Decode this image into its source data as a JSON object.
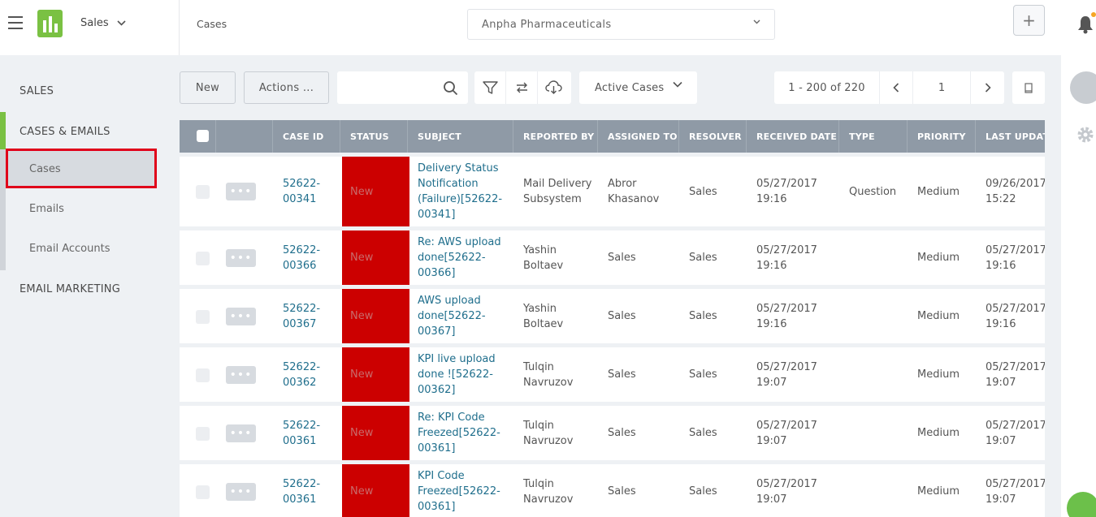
{
  "header": {
    "app_name": "Sales",
    "breadcrumb": "Cases",
    "org_selected": "Anpha Pharmaceuticals",
    "add_label": "+"
  },
  "sidebar": {
    "sections": [
      {
        "label": "SALES"
      },
      {
        "label": "CASES & EMAILS",
        "items": [
          {
            "label": "Cases"
          },
          {
            "label": "Emails"
          },
          {
            "label": "Email Accounts"
          }
        ]
      },
      {
        "label": "EMAIL MARKETING"
      }
    ]
  },
  "toolbar": {
    "new_label": "New",
    "actions_label": "Actions ...",
    "search_placeholder": "",
    "view_selected": "Active Cases",
    "page_range": "1 - 200 of 220",
    "page_number": "1"
  },
  "grid": {
    "columns": [
      "CASE ID",
      "STATUS",
      "SUBJECT",
      "REPORTED BY",
      "ASSIGNED TO",
      "RESOLVER",
      "RECEIVED DATE",
      "TYPE",
      "PRIORITY",
      "LAST UPDATE"
    ],
    "rows": [
      {
        "case_id": [
          "52622-",
          "00341"
        ],
        "status": "New",
        "subject": [
          "Delivery Status",
          "Notification",
          "(Failure)[52622-",
          "00341]"
        ],
        "reported_by": [
          "Mail Delivery",
          "Subsystem"
        ],
        "assigned_to": [
          "Abror",
          "Khasanov"
        ],
        "resolver": "Sales",
        "received": [
          "05/27/2017",
          "19:16"
        ],
        "type": "Question",
        "priority": "Medium",
        "last_update": [
          "09/26/2017",
          "15:22"
        ]
      },
      {
        "case_id": [
          "52622-",
          "00366"
        ],
        "status": "New",
        "subject": [
          "Re: AWS upload",
          "done[52622-",
          "00366]"
        ],
        "reported_by": [
          "Yashin",
          "Boltaev"
        ],
        "assigned_to": [
          "Sales"
        ],
        "resolver": "Sales",
        "received": [
          "05/27/2017",
          "19:16"
        ],
        "type": "",
        "priority": "Medium",
        "last_update": [
          "05/27/2017",
          "19:16"
        ]
      },
      {
        "case_id": [
          "52622-",
          "00367"
        ],
        "status": "New",
        "subject": [
          "AWS upload",
          "done[52622-",
          "00367]"
        ],
        "reported_by": [
          "Yashin",
          "Boltaev"
        ],
        "assigned_to": [
          "Sales"
        ],
        "resolver": "Sales",
        "received": [
          "05/27/2017",
          "19:16"
        ],
        "type": "",
        "priority": "Medium",
        "last_update": [
          "05/27/2017",
          "19:16"
        ]
      },
      {
        "case_id": [
          "52622-",
          "00362"
        ],
        "status": "New",
        "subject": [
          "KPI live upload",
          "done ![52622-",
          "00362]"
        ],
        "reported_by": [
          "Tulqin",
          "Navruzov"
        ],
        "assigned_to": [
          "Sales"
        ],
        "resolver": "Sales",
        "received": [
          "05/27/2017",
          "19:07"
        ],
        "type": "",
        "priority": "Medium",
        "last_update": [
          "05/27/2017",
          "19:07"
        ]
      },
      {
        "case_id": [
          "52622-",
          "00361"
        ],
        "status": "New",
        "subject": [
          "Re: KPI Code",
          "Freezed[52622-",
          "00361]"
        ],
        "reported_by": [
          "Tulqin",
          "Navruzov"
        ],
        "assigned_to": [
          "Sales"
        ],
        "resolver": "Sales",
        "received": [
          "05/27/2017",
          "19:07"
        ],
        "type": "",
        "priority": "Medium",
        "last_update": [
          "05/27/2017",
          "19:07"
        ]
      },
      {
        "case_id": [
          "52622-",
          "00361"
        ],
        "status": "New",
        "subject": [
          "KPI Code",
          "Freezed[52622-",
          "00361]"
        ],
        "reported_by": [
          "Tulqin",
          "Navruzov"
        ],
        "assigned_to": [
          "Sales"
        ],
        "resolver": "Sales",
        "received": [
          "05/27/2017",
          "19:07"
        ],
        "type": "",
        "priority": "Medium",
        "last_update": [
          "05/27/2017",
          "19:07"
        ]
      }
    ]
  },
  "colors": {
    "accent_green": "#7ac143",
    "status_new": "#cc0000",
    "link": "#1f6e8c",
    "header_gray": "#8f9aa6"
  }
}
